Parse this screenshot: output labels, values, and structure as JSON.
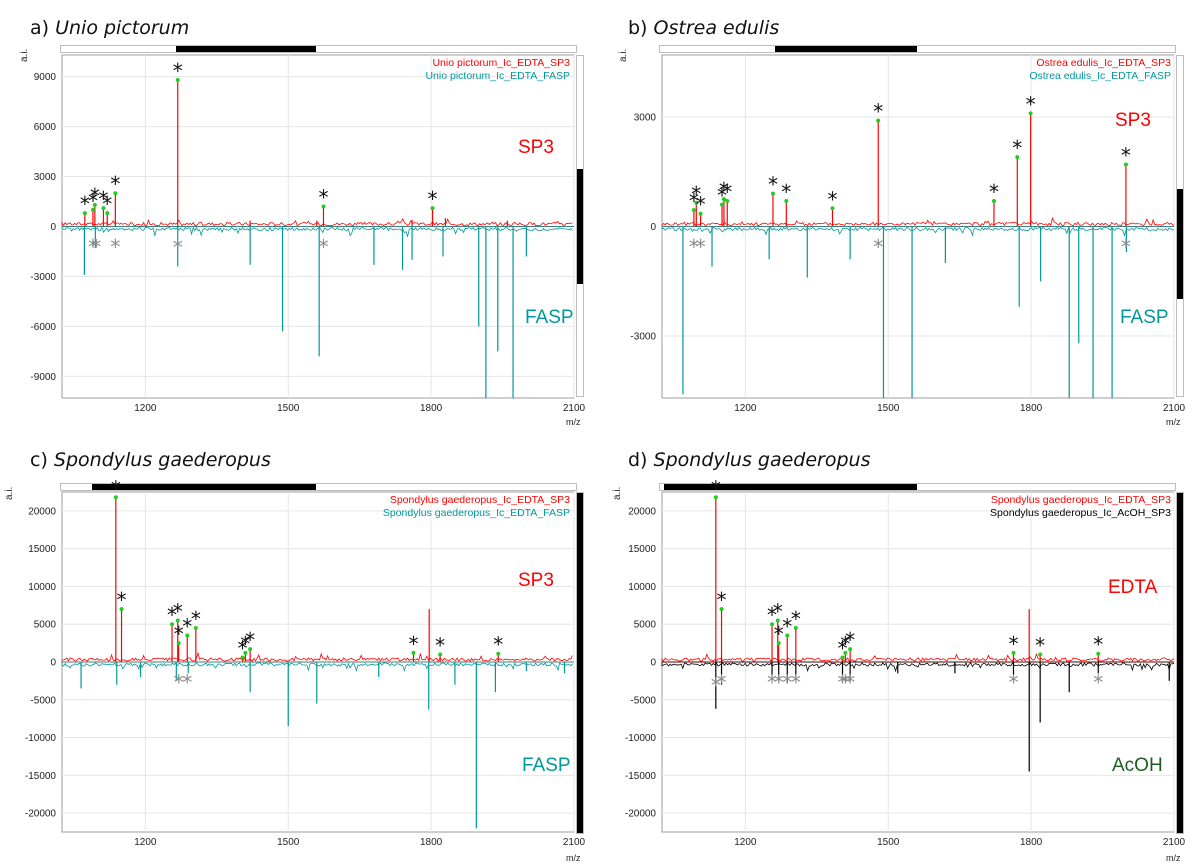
{
  "chart_data": [
    {
      "type": "line",
      "panel_label": "a)",
      "species": "Unio pictorum",
      "ylabel": "a.i.",
      "xlabel": "m/z",
      "xlim": [
        1025,
        2100
      ],
      "ylim": [
        -10300,
        10300
      ],
      "xticks": [
        "1200",
        "1500",
        "1800",
        "2100"
      ],
      "yticks": [
        "9000",
        "6000",
        "3000",
        "0",
        "-3000",
        "-6000",
        "-9000"
      ],
      "grid": true,
      "legend_position": "top-right",
      "top_label": "SP3",
      "bottom_label": "FASP",
      "series": [
        {
          "name": "Unio pictorum_Ic_EDTA_SP3",
          "color": "#ff0000",
          "direction": "up",
          "x": [
            1073,
            1090,
            1094,
            1112,
            1120,
            1137,
            1268,
            1574,
            1803,
            1420,
            1560,
            1760,
            1830,
            1960
          ],
          "y": [
            800,
            1000,
            1300,
            1100,
            800,
            2000,
            8800,
            1200,
            1100,
            350,
            350,
            400,
            500,
            350
          ]
        },
        {
          "name": "Unio pictorum_Ic_EDTA_FASP",
          "color": "#009999",
          "direction": "down",
          "x": [
            1072,
            1095,
            1268,
            1420,
            1488,
            1565,
            1680,
            1740,
            1760,
            1825,
            1900,
            1915,
            1940,
            1972,
            2000
          ],
          "y": [
            -2900,
            -1300,
            -2400,
            -2300,
            -6300,
            -7800,
            -2300,
            -2600,
            -2000,
            -1800,
            -6000,
            -10300,
            -7500,
            -10300,
            -1800
          ]
        }
      ],
      "annotations": [
        {
          "marker": "*",
          "series": 0,
          "x": [
            1073,
            1090,
            1094,
            1112,
            1120,
            1137,
            1268,
            1574,
            1803
          ]
        },
        {
          "marker": "*",
          "series": 1,
          "x": [
            1090,
            1097,
            1137,
            1268,
            1574
          ]
        }
      ]
    },
    {
      "type": "line",
      "panel_label": "b)",
      "species": "Ostrea edulis",
      "ylabel": "a.i.",
      "xlabel": "m/z",
      "xlim": [
        1025,
        2100
      ],
      "ylim": [
        -4700,
        4700
      ],
      "xticks": [
        "1200",
        "1500",
        "1800",
        "2100"
      ],
      "yticks": [
        "3000",
        "0",
        "-3000"
      ],
      "grid": true,
      "legend_position": "top-right",
      "top_label": "SP3",
      "bottom_label": "FASP",
      "series": [
        {
          "name": "Ostrea edulis_Ic_EDTA_SP3",
          "color": "#ff0000",
          "direction": "up",
          "x": [
            1092,
            1097,
            1106,
            1151,
            1155,
            1162,
            1258,
            1286,
            1383,
            1479,
            1722,
            1771,
            1799,
            1999
          ],
          "y": [
            450,
            650,
            350,
            600,
            750,
            700,
            900,
            700,
            500,
            2900,
            700,
            1900,
            3100,
            1700
          ]
        },
        {
          "name": "Ostrea edulis_Ic_EDTA_FASP",
          "color": "#009999",
          "direction": "down",
          "x": [
            1069,
            1130,
            1250,
            1330,
            1420,
            1490,
            1550,
            1620,
            1775,
            1820,
            1880,
            1900,
            1930,
            1970,
            2000
          ],
          "y": [
            -4600,
            -1100,
            -900,
            -1400,
            -900,
            -4700,
            -4700,
            -1000,
            -2200,
            -1500,
            -4700,
            -3200,
            -4700,
            -4700,
            -700
          ]
        }
      ],
      "annotations": [
        {
          "marker": "*",
          "series": 0,
          "x": [
            1092,
            1097,
            1106,
            1151,
            1155,
            1162,
            1258,
            1286,
            1383,
            1479,
            1722,
            1771,
            1799,
            1999
          ]
        },
        {
          "marker": "*",
          "series": 1,
          "x": [
            1092,
            1106,
            1479,
            1999
          ]
        }
      ]
    },
    {
      "type": "line",
      "panel_label": "c)",
      "species": "Spondylus gaederopus",
      "ylabel": "a.i.",
      "xlabel": "m/z",
      "xlim": [
        1025,
        2100
      ],
      "ylim": [
        -22500,
        22500
      ],
      "xticks": [
        "1200",
        "1500",
        "1800",
        "2100"
      ],
      "yticks": [
        "20000",
        "15000",
        "10000",
        "5000",
        "0",
        "-5000",
        "-10000",
        "-15000",
        "-20000"
      ],
      "grid": true,
      "legend_position": "top-right",
      "top_label": "SP3",
      "bottom_label": "FASP",
      "series": [
        {
          "name": "Spondylus gaederopus_Ic_EDTA_SP3",
          "color": "#ff0000",
          "direction": "up",
          "x": [
            1138,
            1150,
            1256,
            1268,
            1270,
            1288,
            1306,
            1404,
            1410,
            1420,
            1763,
            1796,
            1819,
            1941
          ],
          "y": [
            21800,
            7000,
            5000,
            5500,
            2500,
            3500,
            4500,
            600,
            1200,
            1700,
            1200,
            7000,
            1000,
            1100
          ]
        },
        {
          "name": "Spondylus gaederopus_Ic_EDTA_FASP",
          "color": "#009999",
          "direction": "down",
          "x": [
            1065,
            1140,
            1190,
            1265,
            1290,
            1420,
            1500,
            1560,
            1690,
            1795,
            1850,
            1895,
            1935,
            2000,
            2080
          ],
          "y": [
            -3500,
            -3000,
            -2000,
            -2500,
            -1500,
            -4000,
            -8500,
            -5500,
            -2000,
            -6300,
            -3000,
            -22000,
            -4000,
            -1200,
            -1500
          ]
        }
      ],
      "annotations": [
        {
          "marker": "*",
          "series": 0,
          "x": [
            1138,
            1150,
            1256,
            1268,
            1270,
            1288,
            1306,
            1404,
            1410,
            1420,
            1763,
            1819,
            1941
          ]
        },
        {
          "marker": "*",
          "series": 1,
          "x": [
            1270,
            1288
          ]
        }
      ]
    },
    {
      "type": "line",
      "panel_label": "d)",
      "species": "Spondylus gaederopus",
      "ylabel": "a.i.",
      "xlabel": "m/z",
      "xlim": [
        1025,
        2100
      ],
      "ylim": [
        -22500,
        22500
      ],
      "xticks": [
        "1200",
        "1500",
        "1800",
        "2100"
      ],
      "yticks": [
        "20000",
        "15000",
        "10000",
        "5000",
        "0",
        "-5000",
        "-10000",
        "-15000",
        "-20000"
      ],
      "grid": true,
      "legend_position": "top-right",
      "top_label": "EDTA",
      "bottom_label": "AcOH",
      "series": [
        {
          "name": "Spondylus gaederopus_Ic_EDTA_SP3",
          "color": "#ff0000",
          "direction": "up",
          "x": [
            1138,
            1150,
            1256,
            1268,
            1270,
            1288,
            1306,
            1404,
            1410,
            1420,
            1763,
            1796,
            1819,
            1941
          ],
          "y": [
            21800,
            7000,
            5000,
            5500,
            2500,
            3500,
            4500,
            600,
            1200,
            1700,
            1200,
            7000,
            1000,
            1100
          ]
        },
        {
          "name": "Spondylus gaederopus_Ic_AcOH_SP3",
          "color": "#000000",
          "direction": "down",
          "x": [
            1138,
            1150,
            1256,
            1270,
            1288,
            1306,
            1404,
            1420,
            1520,
            1640,
            1763,
            1796,
            1819,
            1880,
            1941,
            2090
          ],
          "y": [
            -6200,
            -3000,
            -2000,
            -2500,
            -2800,
            -2000,
            -1800,
            -2500,
            -1500,
            -1500,
            -1800,
            -14500,
            -8000,
            -4000,
            -1500,
            -2500
          ]
        }
      ],
      "annotations": [
        {
          "marker": "*",
          "series": 0,
          "x": [
            1138,
            1150,
            1256,
            1268,
            1270,
            1288,
            1306,
            1404,
            1410,
            1420,
            1763,
            1819,
            1941
          ]
        },
        {
          "marker": "*",
          "series": 1,
          "x": [
            1138,
            1150,
            1256,
            1270,
            1288,
            1306,
            1404,
            1410,
            1420,
            1763,
            1941
          ]
        }
      ]
    }
  ]
}
